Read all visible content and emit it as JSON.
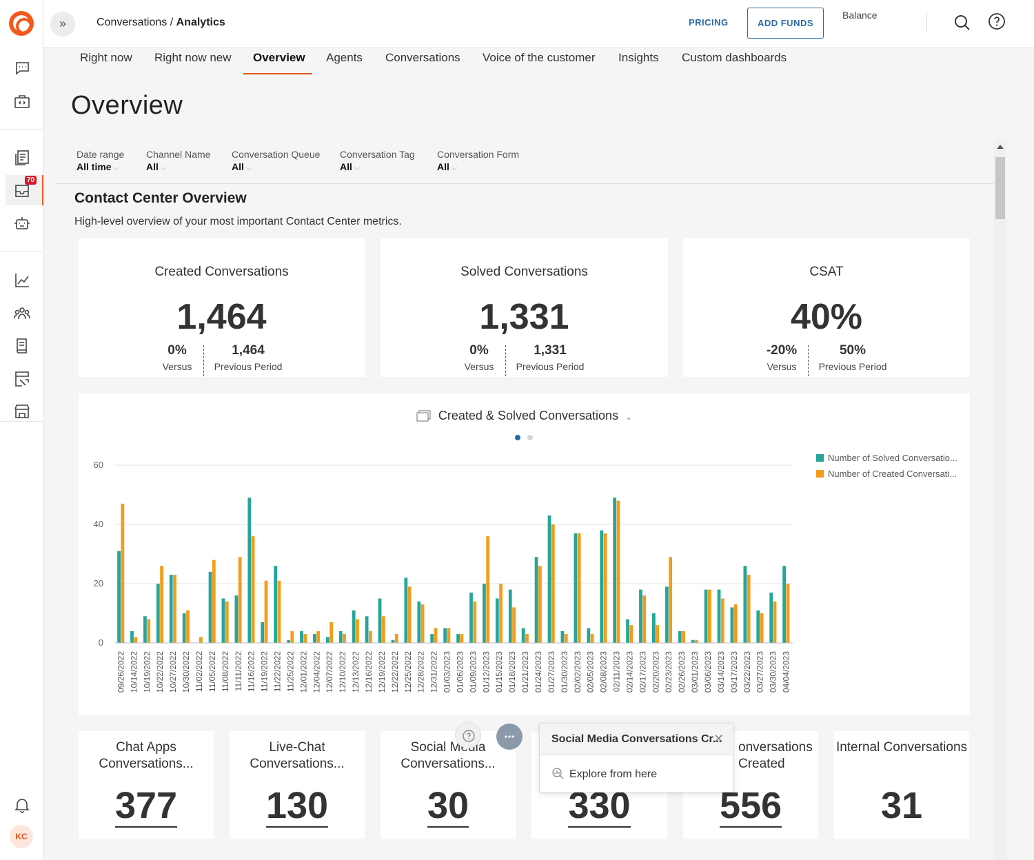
{
  "header": {
    "breadcrumb_parent": "Conversations",
    "breadcrumb_sep": " / ",
    "breadcrumb_current": "Analytics",
    "pricing": "PRICING",
    "add_funds": "ADD FUNDS",
    "balance": "Balance"
  },
  "sidebar": {
    "notification_badge": "70",
    "avatar_initials": "KC",
    "accent": "#f4581c"
  },
  "tabs": [
    {
      "label": "Right now"
    },
    {
      "label": "Right now new"
    },
    {
      "label": "Overview"
    },
    {
      "label": "Agents"
    },
    {
      "label": "Conversations"
    },
    {
      "label": "Voice of the customer"
    },
    {
      "label": "Insights"
    },
    {
      "label": "Custom dashboards"
    }
  ],
  "active_tab": "Overview",
  "page_title": "Overview",
  "filters": [
    {
      "label": "Date range",
      "value": "All time"
    },
    {
      "label": "Channel Name",
      "value": "All"
    },
    {
      "label": "Conversation Queue",
      "value": "All"
    },
    {
      "label": "Conversation Tag",
      "value": "All"
    },
    {
      "label": "Conversation Form",
      "value": "All"
    }
  ],
  "section": {
    "title": "Contact Center Overview",
    "subtitle": "High-level overview of your most important Contact Center metrics."
  },
  "kpis": [
    {
      "title": "Created Conversations",
      "value": "1,464",
      "versus": "0%",
      "versus_label": "Versus",
      "previous": "1,464",
      "previous_label": "Previous Period"
    },
    {
      "title": "Solved Conversations",
      "value": "1,331",
      "versus": "0%",
      "versus_label": "Versus",
      "previous": "1,331",
      "previous_label": "Previous Period"
    },
    {
      "title": "CSAT",
      "value": "40%",
      "versus": "-20%",
      "versus_label": "Versus",
      "previous": "50%",
      "previous_label": "Previous Period"
    }
  ],
  "chart_title": "Created & Solved Conversations",
  "chart_data": {
    "type": "bar",
    "xlabel": "",
    "ylabel": "",
    "ylim": [
      0,
      60
    ],
    "yticks": [
      0,
      20,
      40,
      60
    ],
    "grid": true,
    "legend_position": "top-right",
    "series_colors": [
      "#26a69a",
      "#f29d1c"
    ],
    "categories": [
      "09/26/2022",
      "10/14/2022",
      "10/19/2022",
      "10/22/2022",
      "10/27/2022",
      "10/30/2022",
      "11/02/2022",
      "11/05/2022",
      "11/08/2022",
      "11/11/2022",
      "11/16/2022",
      "11/19/2022",
      "11/22/2022",
      "11/25/2022",
      "12/01/2022",
      "12/04/2022",
      "12/07/2022",
      "12/10/2022",
      "12/13/2022",
      "12/16/2022",
      "12/19/2022",
      "12/22/2022",
      "12/25/2022",
      "12/28/2022",
      "12/31/2022",
      "01/03/2023",
      "01/06/2023",
      "01/09/2023",
      "01/12/2023",
      "01/15/2023",
      "01/18/2023",
      "01/21/2023",
      "01/24/2023",
      "01/27/2023",
      "01/30/2023",
      "02/02/2023",
      "02/05/2023",
      "02/08/2023",
      "02/11/2023",
      "02/14/2023",
      "02/17/2023",
      "02/20/2023",
      "02/23/2023",
      "02/26/2023",
      "03/01/2023",
      "03/06/2023",
      "03/14/2023",
      "03/17/2023",
      "03/22/2023",
      "03/27/2023",
      "03/30/2023",
      "04/04/2023"
    ],
    "series": [
      {
        "name": "Number of Solved Conversatio...",
        "values": [
          31,
          4,
          9,
          20,
          23,
          10,
          0,
          24,
          15,
          16,
          49,
          7,
          26,
          1,
          4,
          3,
          2,
          4,
          11,
          9,
          15,
          1,
          22,
          14,
          3,
          5,
          3,
          17,
          20,
          15,
          18,
          5,
          29,
          43,
          4,
          37,
          5,
          38,
          49,
          8,
          18,
          10,
          19,
          4,
          1,
          18,
          18,
          12,
          26,
          11,
          17,
          26
        ]
      },
      {
        "name": "Number of Created Conversati...",
        "values": [
          47,
          2,
          8,
          26,
          23,
          11,
          2,
          28,
          14,
          29,
          36,
          21,
          21,
          4,
          3,
          4,
          7,
          3,
          8,
          4,
          9,
          3,
          19,
          13,
          5,
          5,
          3,
          14,
          36,
          20,
          12,
          3,
          26,
          40,
          3,
          37,
          3,
          37,
          48,
          6,
          16,
          6,
          29,
          4,
          1,
          18,
          15,
          13,
          23,
          10,
          14,
          20
        ]
      }
    ]
  },
  "mini_kpis": [
    {
      "title": "Chat Apps Conversations...",
      "value": "377"
    },
    {
      "title": "Live-Chat Conversations...",
      "value": "130"
    },
    {
      "title": "Social Media Conversations...",
      "value": "30"
    },
    {
      "title": "",
      "value": "330"
    },
    {
      "title": "onversations Created",
      "value": "556"
    },
    {
      "title": "Internal Conversations",
      "value": "31"
    }
  ],
  "popup": {
    "title": "Social Media Conversations Cr...",
    "action": "Explore from here"
  }
}
